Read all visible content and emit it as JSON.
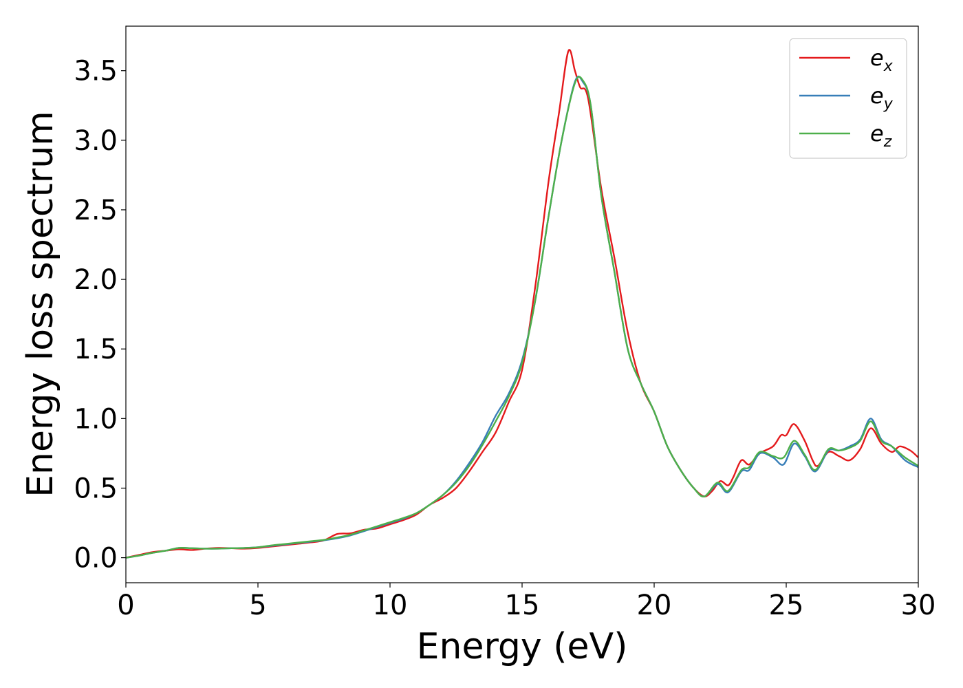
{
  "chart_data": {
    "type": "line",
    "title": "",
    "xlabel": "Energy (eV)",
    "ylabel": "Energy loss spectrum",
    "xlim": [
      0,
      30
    ],
    "ylim": [
      -0.18,
      3.82
    ],
    "xticks": [
      0,
      5,
      10,
      15,
      20,
      25,
      30
    ],
    "xtick_labels": [
      "0",
      "5",
      "10",
      "15",
      "20",
      "25",
      "30"
    ],
    "yticks": [
      0.0,
      0.5,
      1.0,
      1.5,
      2.0,
      2.5,
      3.0,
      3.5
    ],
    "ytick_labels": [
      "0.0",
      "0.5",
      "1.0",
      "1.5",
      "2.0",
      "2.5",
      "3.0",
      "3.5"
    ],
    "grid": false,
    "legend_position": "top-right",
    "series": [
      {
        "name": "e",
        "subscript": "x",
        "color": "#e41a1c",
        "points": [
          [
            0,
            0.0
          ],
          [
            0.5,
            0.02
          ],
          [
            1,
            0.04
          ],
          [
            1.5,
            0.05
          ],
          [
            2,
            0.06
          ],
          [
            2.5,
            0.055
          ],
          [
            3,
            0.065
          ],
          [
            3.5,
            0.07
          ],
          [
            4,
            0.068
          ],
          [
            4.5,
            0.065
          ],
          [
            5,
            0.07
          ],
          [
            5.5,
            0.08
          ],
          [
            6,
            0.09
          ],
          [
            6.5,
            0.1
          ],
          [
            7,
            0.11
          ],
          [
            7.5,
            0.125
          ],
          [
            8,
            0.17
          ],
          [
            8.5,
            0.175
          ],
          [
            9,
            0.2
          ],
          [
            9.5,
            0.21
          ],
          [
            10,
            0.24
          ],
          [
            10.5,
            0.27
          ],
          [
            11,
            0.31
          ],
          [
            11.5,
            0.38
          ],
          [
            12,
            0.43
          ],
          [
            12.5,
            0.5
          ],
          [
            13,
            0.62
          ],
          [
            13.5,
            0.76
          ],
          [
            14,
            0.9
          ],
          [
            14.5,
            1.12
          ],
          [
            15,
            1.35
          ],
          [
            15.5,
            1.95
          ],
          [
            16,
            2.7
          ],
          [
            16.4,
            3.2
          ],
          [
            16.75,
            3.64
          ],
          [
            17,
            3.5
          ],
          [
            17.2,
            3.38
          ],
          [
            17.5,
            3.3
          ],
          [
            18,
            2.65
          ],
          [
            18.5,
            2.15
          ],
          [
            19,
            1.62
          ],
          [
            19.5,
            1.25
          ],
          [
            20,
            1.05
          ],
          [
            20.5,
            0.8
          ],
          [
            21,
            0.63
          ],
          [
            21.5,
            0.5
          ],
          [
            21.9,
            0.44
          ],
          [
            22.2,
            0.48
          ],
          [
            22.5,
            0.55
          ],
          [
            22.8,
            0.52
          ],
          [
            23,
            0.58
          ],
          [
            23.3,
            0.7
          ],
          [
            23.6,
            0.67
          ],
          [
            24,
            0.75
          ],
          [
            24.5,
            0.8
          ],
          [
            24.8,
            0.88
          ],
          [
            25,
            0.88
          ],
          [
            25.3,
            0.96
          ],
          [
            25.7,
            0.84
          ],
          [
            26,
            0.7
          ],
          [
            26.2,
            0.66
          ],
          [
            26.6,
            0.76
          ],
          [
            27,
            0.73
          ],
          [
            27.4,
            0.7
          ],
          [
            27.8,
            0.78
          ],
          [
            28.2,
            0.93
          ],
          [
            28.6,
            0.82
          ],
          [
            29,
            0.76
          ],
          [
            29.3,
            0.8
          ],
          [
            29.7,
            0.77
          ],
          [
            30,
            0.72
          ]
        ]
      },
      {
        "name": "e",
        "subscript": "y",
        "color": "#377eb8",
        "points": [
          [
            0,
            0.0
          ],
          [
            0.5,
            0.015
          ],
          [
            1,
            0.035
          ],
          [
            1.5,
            0.05
          ],
          [
            2,
            0.07
          ],
          [
            2.5,
            0.068
          ],
          [
            3,
            0.065
          ],
          [
            3.5,
            0.065
          ],
          [
            4,
            0.068
          ],
          [
            4.5,
            0.07
          ],
          [
            5,
            0.075
          ],
          [
            5.5,
            0.085
          ],
          [
            6,
            0.095
          ],
          [
            6.5,
            0.105
          ],
          [
            7,
            0.115
          ],
          [
            7.5,
            0.125
          ],
          [
            8,
            0.14
          ],
          [
            8.5,
            0.16
          ],
          [
            9,
            0.19
          ],
          [
            9.5,
            0.22
          ],
          [
            10,
            0.25
          ],
          [
            10.5,
            0.28
          ],
          [
            11,
            0.32
          ],
          [
            11.5,
            0.38
          ],
          [
            12,
            0.45
          ],
          [
            12.5,
            0.55
          ],
          [
            13,
            0.68
          ],
          [
            13.5,
            0.83
          ],
          [
            14,
            1.02
          ],
          [
            14.5,
            1.18
          ],
          [
            15,
            1.42
          ],
          [
            15.5,
            1.85
          ],
          [
            16,
            2.45
          ],
          [
            16.5,
            3.0
          ],
          [
            17,
            3.42
          ],
          [
            17.3,
            3.42
          ],
          [
            17.6,
            3.25
          ],
          [
            18,
            2.6
          ],
          [
            18.5,
            2.05
          ],
          [
            19,
            1.5
          ],
          [
            19.5,
            1.25
          ],
          [
            20,
            1.05
          ],
          [
            20.5,
            0.8
          ],
          [
            21,
            0.63
          ],
          [
            21.5,
            0.5
          ],
          [
            21.9,
            0.44
          ],
          [
            22.4,
            0.53
          ],
          [
            22.8,
            0.47
          ],
          [
            23.3,
            0.62
          ],
          [
            23.6,
            0.63
          ],
          [
            24,
            0.75
          ],
          [
            24.5,
            0.72
          ],
          [
            24.9,
            0.67
          ],
          [
            25.3,
            0.82
          ],
          [
            25.7,
            0.73
          ],
          [
            26.1,
            0.62
          ],
          [
            26.6,
            0.77
          ],
          [
            27,
            0.77
          ],
          [
            27.4,
            0.8
          ],
          [
            27.8,
            0.85
          ],
          [
            28.2,
            1.0
          ],
          [
            28.6,
            0.85
          ],
          [
            29,
            0.8
          ],
          [
            29.5,
            0.7
          ],
          [
            30,
            0.65
          ]
        ]
      },
      {
        "name": "e",
        "subscript": "z",
        "color": "#4daf4a",
        "points": [
          [
            0,
            0.0
          ],
          [
            0.5,
            0.015
          ],
          [
            1,
            0.035
          ],
          [
            1.5,
            0.05
          ],
          [
            2,
            0.07
          ],
          [
            2.5,
            0.068
          ],
          [
            3,
            0.065
          ],
          [
            3.5,
            0.065
          ],
          [
            4,
            0.068
          ],
          [
            4.5,
            0.07
          ],
          [
            5,
            0.075
          ],
          [
            5.5,
            0.088
          ],
          [
            6,
            0.098
          ],
          [
            6.5,
            0.108
          ],
          [
            7,
            0.118
          ],
          [
            7.5,
            0.128
          ],
          [
            8,
            0.145
          ],
          [
            8.5,
            0.165
          ],
          [
            9,
            0.195
          ],
          [
            9.5,
            0.225
          ],
          [
            10,
            0.255
          ],
          [
            10.5,
            0.285
          ],
          [
            11,
            0.32
          ],
          [
            11.5,
            0.38
          ],
          [
            12,
            0.45
          ],
          [
            12.5,
            0.54
          ],
          [
            13,
            0.66
          ],
          [
            13.5,
            0.81
          ],
          [
            14,
            0.98
          ],
          [
            14.5,
            1.16
          ],
          [
            15,
            1.4
          ],
          [
            15.5,
            1.85
          ],
          [
            16,
            2.45
          ],
          [
            16.5,
            3.0
          ],
          [
            17,
            3.41
          ],
          [
            17.3,
            3.43
          ],
          [
            17.6,
            3.25
          ],
          [
            18,
            2.6
          ],
          [
            18.5,
            2.05
          ],
          [
            19,
            1.5
          ],
          [
            19.5,
            1.25
          ],
          [
            20,
            1.05
          ],
          [
            20.5,
            0.8
          ],
          [
            21,
            0.63
          ],
          [
            21.5,
            0.5
          ],
          [
            21.9,
            0.44
          ],
          [
            22.4,
            0.54
          ],
          [
            22.8,
            0.48
          ],
          [
            23.3,
            0.63
          ],
          [
            23.6,
            0.65
          ],
          [
            24,
            0.76
          ],
          [
            24.5,
            0.73
          ],
          [
            24.9,
            0.72
          ],
          [
            25.3,
            0.84
          ],
          [
            25.7,
            0.74
          ],
          [
            26.1,
            0.63
          ],
          [
            26.6,
            0.78
          ],
          [
            27,
            0.77
          ],
          [
            27.4,
            0.79
          ],
          [
            27.8,
            0.84
          ],
          [
            28.2,
            0.98
          ],
          [
            28.6,
            0.84
          ],
          [
            29,
            0.8
          ],
          [
            29.5,
            0.72
          ],
          [
            30,
            0.66
          ]
        ]
      }
    ]
  }
}
